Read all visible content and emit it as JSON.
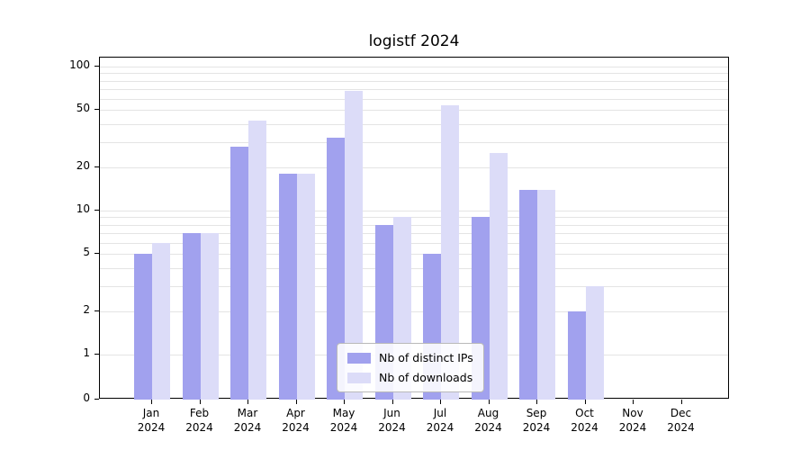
{
  "title": "logistf 2024",
  "chart_data": {
    "type": "bar",
    "title": "logistf 2024",
    "xlabel": "",
    "ylabel": "",
    "year": "2024",
    "categories": [
      "Jan",
      "Feb",
      "Mar",
      "Apr",
      "May",
      "Jun",
      "Jul",
      "Aug",
      "Sep",
      "Oct",
      "Nov",
      "Dec"
    ],
    "series": [
      {
        "name": "Nb of distinct IPs",
        "color": "#a1a1ee",
        "values": [
          5,
          7,
          28,
          18,
          32,
          8,
          5,
          9,
          14,
          2,
          0,
          0
        ]
      },
      {
        "name": "Nb of downloads",
        "color": "#dcdcf8",
        "values": [
          6,
          7,
          42,
          18,
          68,
          9,
          54,
          25,
          14,
          3,
          0,
          0
        ]
      }
    ],
    "yscale": "log",
    "ylim": [
      0,
      100
    ],
    "yticks": [
      0,
      1,
      2,
      5,
      10,
      20,
      50,
      100
    ],
    "minor_gridlines": [
      1,
      2,
      3,
      4,
      5,
      6,
      7,
      8,
      9,
      10,
      20,
      30,
      40,
      50,
      60,
      70,
      80,
      90,
      100
    ],
    "grid": true,
    "legend_position": "lower center"
  },
  "legend": {
    "entries": [
      {
        "label": "Nb of distinct IPs"
      },
      {
        "label": "Nb of downloads"
      }
    ]
  }
}
